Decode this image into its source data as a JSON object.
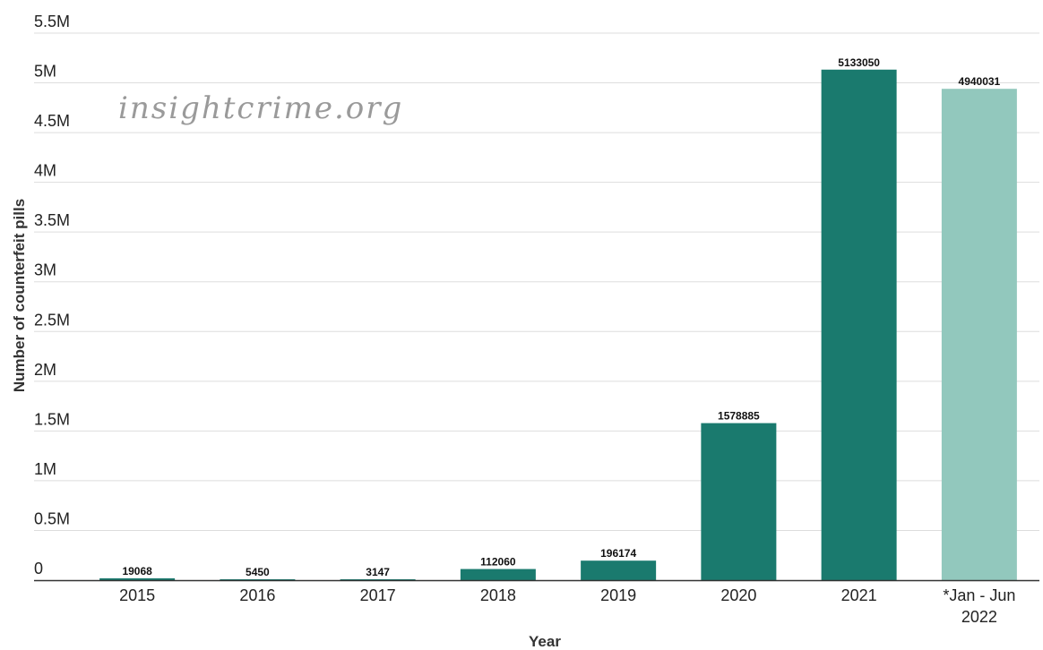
{
  "watermark": "insightcrime.org",
  "chart_data": {
    "type": "bar",
    "categories": [
      "2015",
      "2016",
      "2017",
      "2018",
      "2019",
      "2020",
      "2021",
      "*Jan - Jun 2022"
    ],
    "values": [
      19068,
      5450,
      3147,
      112060,
      196174,
      1578885,
      5133050,
      4940031
    ],
    "data_labels": [
      "19068",
      "5450",
      "3147",
      "112060",
      "196174",
      "1578885",
      "5133050",
      "4940031"
    ],
    "bar_colors": [
      "#1a7a6e",
      "#1a7a6e",
      "#1a7a6e",
      "#1a7a6e",
      "#1a7a6e",
      "#1a7a6e",
      "#1a7a6e",
      "#92c8bd"
    ],
    "xlabel": "Year",
    "ylabel": "Number of counterfeit pills",
    "ylim": [
      0,
      5500000
    ],
    "yticks": [
      0,
      500000,
      1000000,
      1500000,
      2000000,
      2500000,
      3000000,
      3500000,
      4000000,
      4500000,
      5000000,
      5500000
    ],
    "ytick_labels": [
      "0",
      "0.5M",
      "1M",
      "1.5M",
      "2M",
      "2.5M",
      "3M",
      "3.5M",
      "4M",
      "4.5M",
      "5M",
      "5.5M"
    ],
    "grid": true,
    "legend": "none"
  }
}
